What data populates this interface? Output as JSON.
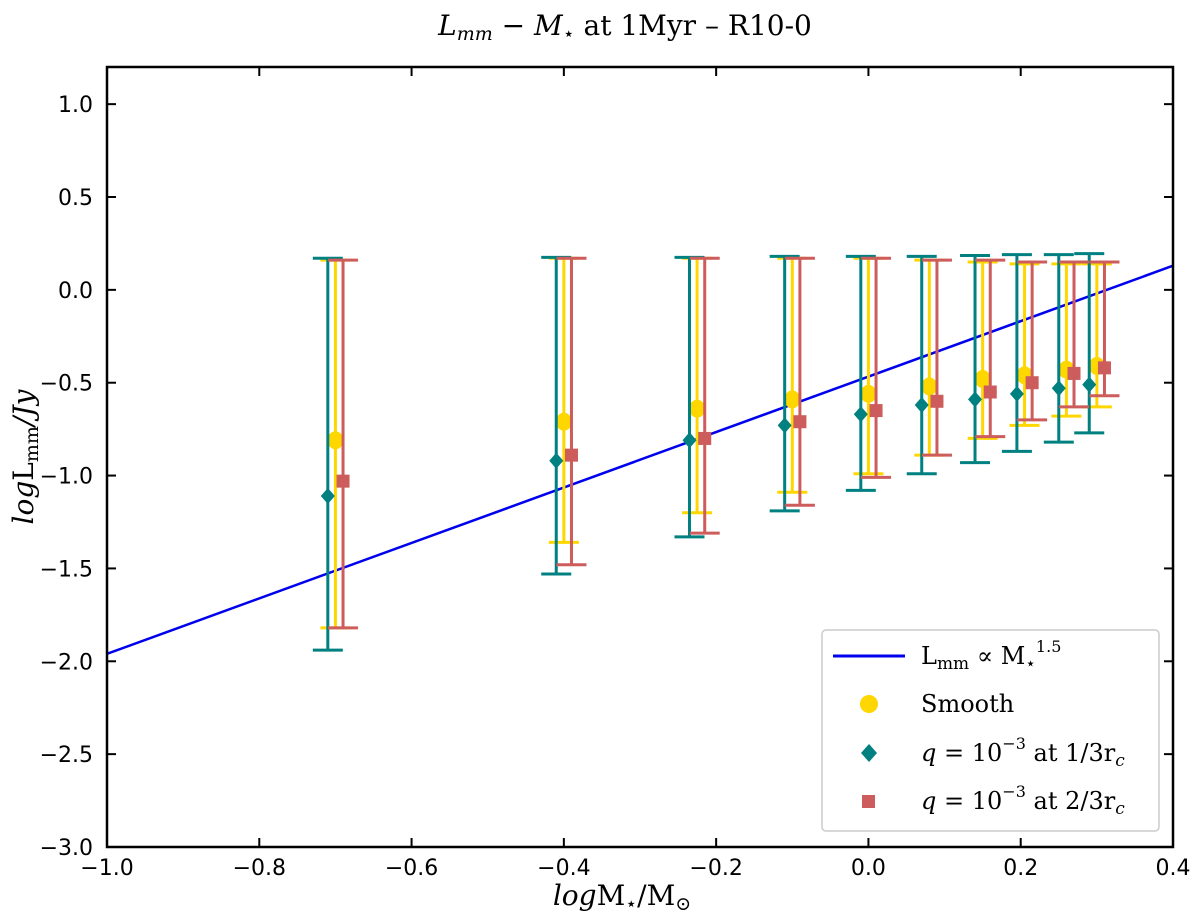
{
  "chart_data": {
    "type": "scatter",
    "title": "L_mm − M⋆ at 1Myr – R10-0",
    "title_parts": {
      "lhs": "L",
      "lhs_sub": "mm",
      "minus": " − ",
      "rhs": "M",
      "rhs_sub": "⋆",
      "tail": " at 1Myr – R10-0"
    },
    "xlabel": "logM⋆/M⊙",
    "xlabel_parts": {
      "log": "log",
      "m": "M",
      "m_sub": "⋆",
      "slash": "/M",
      "sun_sub": "⊙"
    },
    "ylabel": "logL_mm/Jy",
    "ylabel_parts": {
      "log": "log",
      "l": "L",
      "l_sub": "mm",
      "tail": "/Jy"
    },
    "xlim": [
      -1.0,
      0.4
    ],
    "ylim": [
      -3.0,
      1.2
    ],
    "xticks": [
      "−1.0",
      "−0.8",
      "−0.6",
      "−0.4",
      "−0.2",
      "0.0",
      "0.2",
      "0.4"
    ],
    "xtick_values": [
      -1.0,
      -0.8,
      -0.6,
      -0.4,
      -0.2,
      0.0,
      0.2,
      0.4
    ],
    "yticks": [
      "1.0",
      "0.5",
      "0.0",
      "−0.5",
      "−1.0",
      "−1.5",
      "−2.0",
      "−2.5",
      "−3.0"
    ],
    "ytick_values": [
      1.0,
      0.5,
      0.0,
      -0.5,
      -1.0,
      -1.5,
      -2.0,
      -2.5,
      -3.0
    ],
    "fit_line": {
      "name": "L_mm ∝ M⋆^1.5",
      "x": [
        -1.0,
        0.4
      ],
      "y": [
        -1.96,
        0.13
      ],
      "color": "#0000ee"
    },
    "series": [
      {
        "name": "Smooth",
        "marker": "circle",
        "color": "#ffd700",
        "x": [
          -0.7,
          -0.4,
          -0.225,
          -0.1,
          0.0,
          0.08,
          0.15,
          0.205,
          0.26,
          0.3
        ],
        "y": [
          -0.81,
          -0.71,
          -0.64,
          -0.59,
          -0.56,
          -0.52,
          -0.48,
          -0.46,
          -0.43,
          -0.41
        ],
        "err_low": [
          -1.82,
          -1.36,
          -1.2,
          -1.09,
          -0.99,
          -0.89,
          -0.8,
          -0.73,
          -0.68,
          -0.63
        ],
        "err_high": [
          0.16,
          0.17,
          0.17,
          0.17,
          0.17,
          0.16,
          0.15,
          0.14,
          0.14,
          0.14
        ]
      },
      {
        "name": "q = 10^−3 at 1/3r_c",
        "marker": "diamond",
        "color": "#008080",
        "x": [
          -0.71,
          -0.41,
          -0.235,
          -0.11,
          -0.01,
          0.07,
          0.14,
          0.195,
          0.25,
          0.29
        ],
        "y": [
          -1.11,
          -0.92,
          -0.81,
          -0.73,
          -0.67,
          -0.62,
          -0.59,
          -0.56,
          -0.53,
          -0.51
        ],
        "err_low": [
          -1.94,
          -1.53,
          -1.33,
          -1.19,
          -1.08,
          -0.99,
          -0.93,
          -0.87,
          -0.82,
          -0.77
        ],
        "err_high": [
          0.17,
          0.175,
          0.175,
          0.18,
          0.18,
          0.18,
          0.185,
          0.19,
          0.19,
          0.195
        ]
      },
      {
        "name": "q = 10^−3 at 2/3r_c",
        "marker": "square",
        "color": "#cd5c5c",
        "x": [
          -0.69,
          -0.39,
          -0.215,
          -0.09,
          0.01,
          0.09,
          0.16,
          0.215,
          0.27,
          0.31
        ],
        "y": [
          -1.03,
          -0.89,
          -0.8,
          -0.71,
          -0.65,
          -0.6,
          -0.55,
          -0.5,
          -0.45,
          -0.42
        ],
        "err_low": [
          -1.82,
          -1.48,
          -1.31,
          -1.16,
          -1.01,
          -0.89,
          -0.79,
          -0.7,
          -0.63,
          -0.57
        ],
        "err_high": [
          0.16,
          0.17,
          0.17,
          0.17,
          0.17,
          0.16,
          0.16,
          0.15,
          0.15,
          0.15
        ]
      }
    ],
    "legend": {
      "position": "lower right",
      "entries": [
        {
          "label": "L_mm ∝ M⋆^1.5",
          "parts": {
            "a": "L",
            "a_sub": "mm",
            "rel": " ∝ M",
            "b_sub": "⋆",
            "b_sup": "1.5"
          }
        },
        {
          "label": "Smooth"
        },
        {
          "label": "q = 10^−3 at 1/3r_c",
          "parts": {
            "q": "q",
            "eq": " = 10",
            "sup": "−3",
            "tail": " at 1/3r",
            "sub": "c"
          }
        },
        {
          "label": "q = 10^−3 at 2/3r_c",
          "parts": {
            "q": "q",
            "eq": " = 10",
            "sup": "−3",
            "tail": " at 2/3r",
            "sub": "c"
          }
        }
      ]
    },
    "grid": false
  }
}
